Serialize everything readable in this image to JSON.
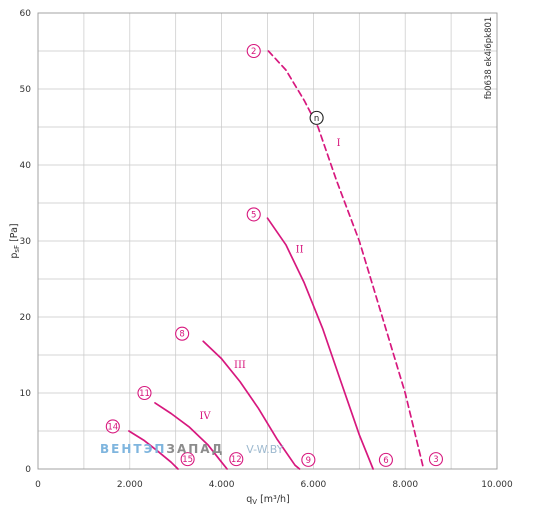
{
  "chart_data": {
    "type": "line",
    "title": "",
    "xlabel_main": "q",
    "xlabel_sub": "V",
    "xlabel_unit": " [m³/h]",
    "ylabel_main": "p",
    "ylabel_sub": "sF",
    "ylabel_unit": " [Pa]",
    "xlim": [
      0,
      10000
    ],
    "ylim": [
      0,
      60
    ],
    "x_ticks": [
      0,
      2000,
      4000,
      6000,
      8000,
      10000
    ],
    "x_tick_labels": [
      "0",
      "2.000",
      "4.000",
      "6.000",
      "8.000",
      "10.000"
    ],
    "y_ticks": [
      0,
      10,
      20,
      30,
      40,
      50,
      60
    ],
    "y_tick_labels": [
      "0",
      "10",
      "20",
      "30",
      "40",
      "50",
      "60"
    ],
    "x_minor_step": 1000,
    "y_minor_step": 5,
    "grid": true,
    "line_color": "#d7187e",
    "series": [
      {
        "name": "I",
        "dashed": true,
        "x": [
          5020,
          5400,
          5800,
          6100,
          6500,
          7000,
          7500,
          8000,
          8400
        ],
        "y": [
          55,
          52.5,
          48.5,
          45,
          38,
          30,
          20,
          10,
          0
        ]
      },
      {
        "name": "II",
        "dashed": false,
        "x": [
          5000,
          5400,
          5800,
          6200,
          6600,
          7000,
          7300
        ],
        "y": [
          33,
          29.5,
          24.5,
          18.5,
          11.5,
          4.5,
          0
        ]
      },
      {
        "name": "III",
        "dashed": false,
        "x": [
          3600,
          4000,
          4400,
          4800,
          5200,
          5600,
          5700
        ],
        "y": [
          16.8,
          14.5,
          11.5,
          8,
          4,
          0.5,
          0
        ]
      },
      {
        "name": "IV",
        "dashed": false,
        "x": [
          2550,
          2900,
          3300,
          3700,
          4000,
          4120
        ],
        "y": [
          8.7,
          7.3,
          5.5,
          3.2,
          0.9,
          0
        ]
      },
      {
        "name": "",
        "dashed": false,
        "x": [
          1980,
          2300,
          2600,
          2900,
          3050
        ],
        "y": [
          5,
          3.8,
          2.4,
          0.9,
          0
        ]
      }
    ],
    "roman_labels": [
      {
        "text": "I",
        "x": 6550,
        "y": 42.5
      },
      {
        "text": "II",
        "x": 5700,
        "y": 28.5
      },
      {
        "text": "III",
        "x": 4400,
        "y": 13.3
      },
      {
        "text": "IV",
        "x": 3640,
        "y": 6.6
      }
    ],
    "markers": [
      {
        "text": "2",
        "x": 4700,
        "y": 55
      },
      {
        "text": "5",
        "x": 4700,
        "y": 33.5
      },
      {
        "text": "8",
        "x": 3140,
        "y": 17.8
      },
      {
        "text": "11",
        "x": 2320,
        "y": 10
      },
      {
        "text": "14",
        "x": 1630,
        "y": 5.6
      },
      {
        "text": "15",
        "x": 3260,
        "y": 1.3
      },
      {
        "text": "12",
        "x": 4320,
        "y": 1.3
      },
      {
        "text": "9",
        "x": 5890,
        "y": 1.2
      },
      {
        "text": "6",
        "x": 7580,
        "y": 1.2
      },
      {
        "text": "3",
        "x": 8670,
        "y": 1.3
      },
      {
        "text": "n",
        "x": 6070,
        "y": 46.2,
        "black": true
      }
    ],
    "side_code": "fb0638 ek4i6pk801",
    "watermark": {
      "part1": "ВЕНТЭП",
      "part2": "ЗАПАД",
      "part3": "V-W.BY"
    }
  }
}
